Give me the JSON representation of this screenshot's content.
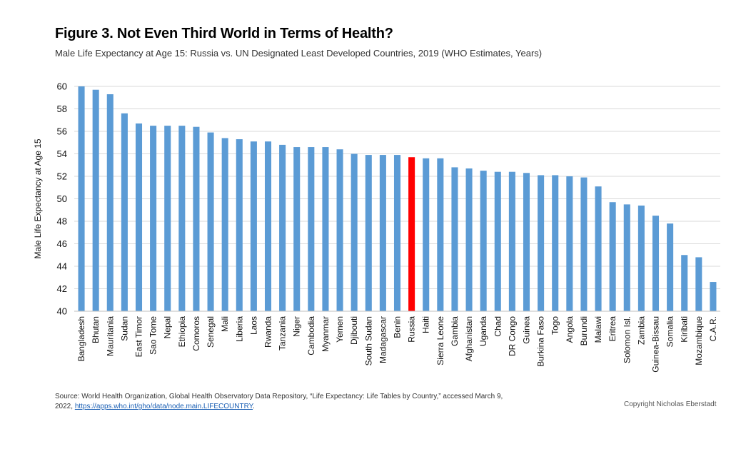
{
  "header": {
    "title": "Figure 3. Not Even Third World in Terms of Health?",
    "subtitle": "Male Life Expectancy at Age 15: Russia vs. UN Designated Least Developed Countries, 2019 (WHO Estimates, Years)"
  },
  "chart_data": {
    "type": "bar",
    "title": "Figure 3. Not Even Third World in Terms of Health?",
    "subtitle": "Male Life Expectancy at Age 15: Russia vs. UN Designated Least Developed Countries, 2019 (WHO Estimates, Years)",
    "xlabel": "",
    "ylabel": "Male Life Expectancy at Age 15",
    "ylim": [
      40,
      60
    ],
    "yticks": [
      40,
      42,
      44,
      46,
      48,
      50,
      52,
      54,
      56,
      58,
      60
    ],
    "grid": true,
    "colors": {
      "default": "#5b9bd5",
      "highlight": "#ff0000"
    },
    "highlight": "Russia",
    "categories": [
      "Bangladesh",
      "Bhutan",
      "Mauritania",
      "Sudan",
      "East Timor",
      "Sao Tome",
      "Nepal",
      "Ethiopia",
      "Comoros",
      "Senegal",
      "Mali",
      "Liberia",
      "Laos",
      "Rwanda",
      "Tanzania",
      "Niger",
      "Cambodia",
      "Myanmar",
      "Yemen",
      "Djibouti",
      "South Sudan",
      "Madagascar",
      "Benin",
      "Russia",
      "Haiti",
      "Sierra Leone",
      "Gambia",
      "Afghanistan",
      "Uganda",
      "Chad",
      "DR Congo",
      "Guinea",
      "Burkina Faso",
      "Togo",
      "Angola",
      "Burundi",
      "Malawi",
      "Eritrea",
      "Solomon Isl.",
      "Zambia",
      "Guinea-Bissau",
      "Somalia",
      "Kiribati",
      "Mozambique",
      "C.A.R."
    ],
    "values": [
      60.0,
      59.7,
      59.3,
      57.6,
      56.7,
      56.5,
      56.5,
      56.5,
      56.4,
      55.9,
      55.4,
      55.3,
      55.1,
      55.1,
      54.8,
      54.6,
      54.6,
      54.6,
      54.4,
      54.0,
      53.9,
      53.9,
      53.9,
      53.7,
      53.6,
      53.6,
      52.8,
      52.7,
      52.5,
      52.4,
      52.4,
      52.3,
      52.1,
      52.1,
      52.0,
      51.9,
      51.1,
      49.7,
      49.5,
      49.4,
      48.5,
      47.8,
      45.0,
      44.8,
      42.6
    ]
  },
  "footer": {
    "source_text": "Source: World Health Organization, Global Health Observatory Data Repository, “Life Expectancy: Life Tables by Country,” accessed March 9, 2022, ",
    "source_link": "https://apps.who.int/gho/data/node.main.LIFECOUNTRY",
    "source_end": ".",
    "copyright": "Copyright Nicholas Eberstadt"
  }
}
